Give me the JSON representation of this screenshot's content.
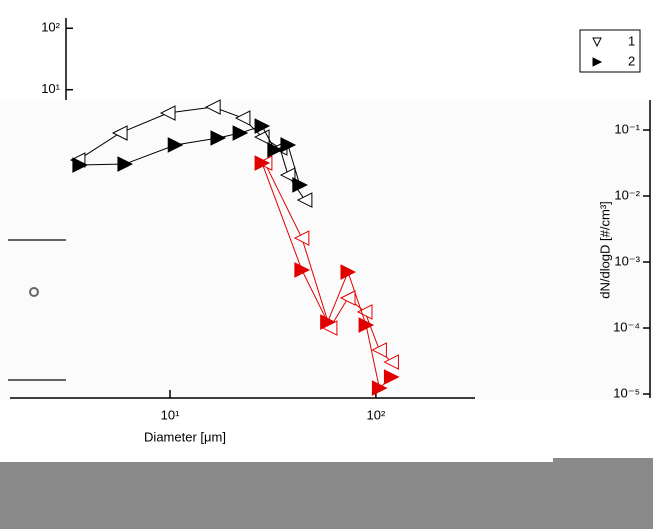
{
  "chart_data": {
    "type": "scatter-line",
    "xlabel": "Diameter [μm]",
    "ylabel": "dN/dlogD [#/cm³]",
    "xscale": "log",
    "yscale": "log",
    "xlim": [
      1.67,
      303
    ],
    "ylim": [
      8.7e-06,
      0.285
    ],
    "xticks": [
      {
        "value": 10,
        "label": "10¹"
      },
      {
        "value": 100,
        "label": "10²"
      }
    ],
    "yticks": [
      {
        "value": 0.1,
        "label": "10⁻¹"
      },
      {
        "value": 0.01,
        "label": "10⁻²"
      },
      {
        "value": 0.001,
        "label": "10⁻³"
      },
      {
        "value": 0.0001,
        "label": "10⁻⁴"
      },
      {
        "value": 1e-05,
        "label": "10⁻⁵"
      }
    ],
    "inset_axis": {
      "ylim": [
        6.8,
        147
      ],
      "yticks": [
        {
          "value": 100,
          "label": "10²"
        },
        {
          "value": 10,
          "label": "10¹"
        }
      ]
    },
    "legend": "top-right",
    "series": [
      {
        "name": "1",
        "color": "#000000",
        "marker": "open",
        "x": [
          3.57,
          5.72,
          9.78,
          16.2,
          22.6,
          28.0,
          34.2,
          37.4,
          45.2
        ],
        "values": [
          0.0351,
          0.0901,
          0.181,
          0.223,
          0.152,
          0.0783,
          0.0534,
          0.0208,
          0.00869
        ]
      },
      {
        "name": "2",
        "color": "#000000",
        "marker": "filled",
        "x": [
          3.65,
          6.04,
          10.6,
          17.1,
          21.9,
          28.0,
          32.3,
          37.4,
          42.7
        ],
        "values": [
          0.0295,
          0.0305,
          0.0593,
          0.0757,
          0.0901,
          0.115,
          0.0498,
          0.0593,
          0.0147
        ]
      },
      {
        "color": "#e00000",
        "marker": "open",
        "x": [
          28.9,
          43.7,
          59.8,
          73.2,
          88.5,
          104,
          119
        ],
        "values": [
          0.0316,
          0.00231,
          0.0001,
          0.000285,
          0.000175,
          4.64e-05,
          3.05e-05
        ]
      },
      {
        "color": "#e00000",
        "marker": "filled",
        "x": [
          28.0,
          43.7,
          58.3,
          73.2,
          89.6,
          104,
          119
        ],
        "values": [
          0.0316,
          0.000757,
          0.000123,
          0.000705,
          0.000111,
          1.23e-05,
          1.81e-05
        ]
      }
    ]
  }
}
